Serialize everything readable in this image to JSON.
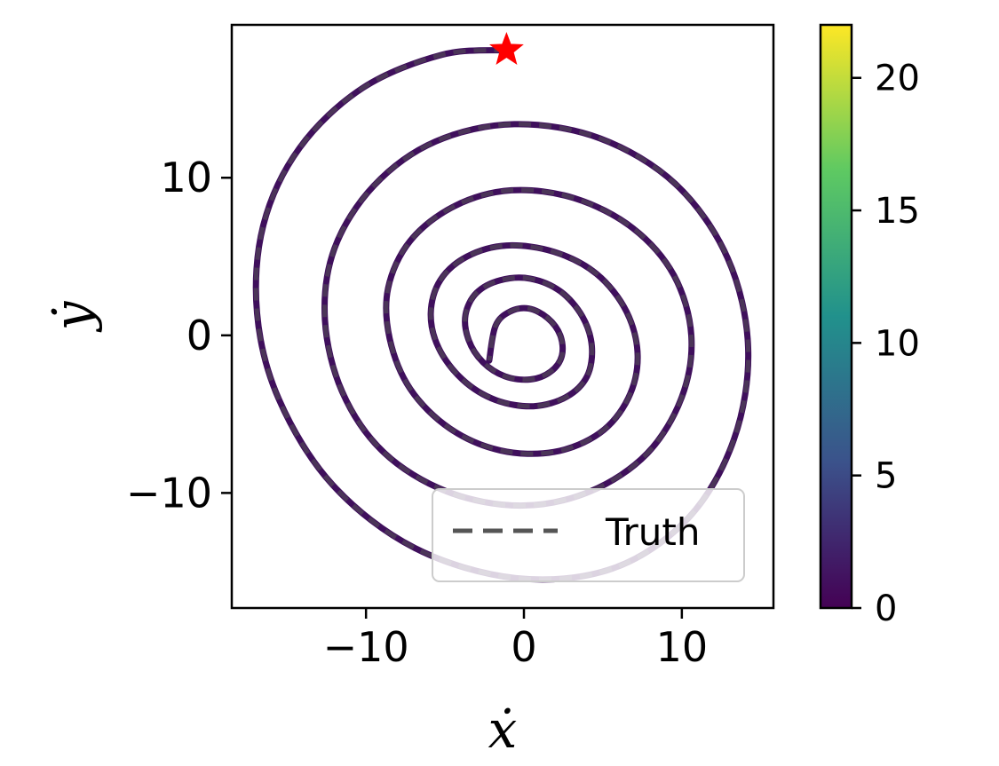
{
  "chart_data": {
    "type": "line",
    "xlabel": "ẋ",
    "ylabel": "ẏ",
    "xlim": [
      -18.5,
      15.8
    ],
    "ylim": [
      -17.3,
      19.7
    ],
    "x_ticks": [
      -10,
      0,
      10
    ],
    "x_tick_labels": [
      "−10",
      "0",
      "10"
    ],
    "y_ticks": [
      -10,
      0,
      10
    ],
    "y_tick_labels": [
      "−10",
      "0",
      "10"
    ],
    "legend": {
      "entries": [
        "Truth"
      ],
      "placement": "lower right"
    },
    "colorbar": {
      "range": [
        0,
        22
      ],
      "ticks": [
        0,
        5,
        10,
        15,
        20
      ],
      "tick_labels": [
        "0",
        "5",
        "10",
        "15",
        "20"
      ],
      "colormap": "viridis",
      "colors": [
        "#440154",
        "#3b528b",
        "#21918c",
        "#5ec962",
        "#fde725"
      ]
    },
    "trajectory": {
      "description_values": "spiral in phase plane from start marker inward",
      "start": [
        -1.1,
        18.1
      ],
      "end": [
        -2.2,
        -1.6
      ],
      "color": "#3f0f5c",
      "truth_color": "#555555",
      "start_marker": {
        "shape": "star",
        "color": "#ff0000"
      },
      "x": [
        -1.1,
        -5.2,
        -10.2,
        -14.2,
        -16.5,
        -16.9,
        -15.5,
        -12.1,
        -6.9,
        -0.5,
        5.6,
        10.4,
        13.3,
        14.2,
        12.9,
        9.6,
        4.8,
        -0.6,
        -5.6,
        -9.5,
        -12.0,
        -12.6,
        -11.5,
        -8.9,
        -4.9,
        -0.2,
        4.2,
        7.8,
        10.0,
        10.6,
        9.5,
        6.9,
        3.2,
        -0.8,
        -4.4,
        -7.2,
        -8.6,
        -8.5,
        -7.2,
        -4.7,
        -1.5,
        1.9,
        4.8,
        6.6,
        7.2,
        6.5,
        4.6,
        1.9,
        -1.1,
        -3.6,
        -5.3,
        -5.9,
        -5.4,
        -3.9,
        -1.8,
        0.6,
        2.7,
        4.0,
        4.3,
        3.7,
        2.3,
        0.4,
        -1.5,
        -3.0,
        -3.7,
        -3.5,
        -2.6,
        -1.2,
        0.4,
        1.7,
        2.4,
        2.3,
        1.5,
        0.3,
        -0.9,
        -1.8,
        -2.2
      ],
      "y": [
        18.1,
        17.8,
        15.7,
        11.9,
        7.0,
        1.4,
        -4.1,
        -9.5,
        -13.5,
        -15.4,
        -14.8,
        -11.6,
        -6.6,
        -0.8,
        4.9,
        9.6,
        12.5,
        13.4,
        12.3,
        9.5,
        5.5,
        1.0,
        -3.6,
        -7.4,
        -9.9,
        -10.8,
        -9.9,
        -7.5,
        -3.9,
        0.0,
        3.8,
        6.8,
        8.7,
        9.2,
        8.2,
        6.0,
        3.0,
        -0.2,
        -3.4,
        -5.9,
        -7.3,
        -7.4,
        -6.2,
        -4.0,
        -1.3,
        1.5,
        3.9,
        5.3,
        5.7,
        5.0,
        3.5,
        1.4,
        -0.8,
        -2.8,
        -4.1,
        -4.5,
        -3.9,
        -2.6,
        -0.7,
        1.2,
        2.8,
        3.6,
        3.5,
        2.7,
        1.3,
        -0.3,
        -1.7,
        -2.6,
        -2.8,
        -2.3,
        -1.3,
        0.0,
        1.1,
        1.7,
        1.5,
        0.6,
        -1.6
      ]
    }
  }
}
